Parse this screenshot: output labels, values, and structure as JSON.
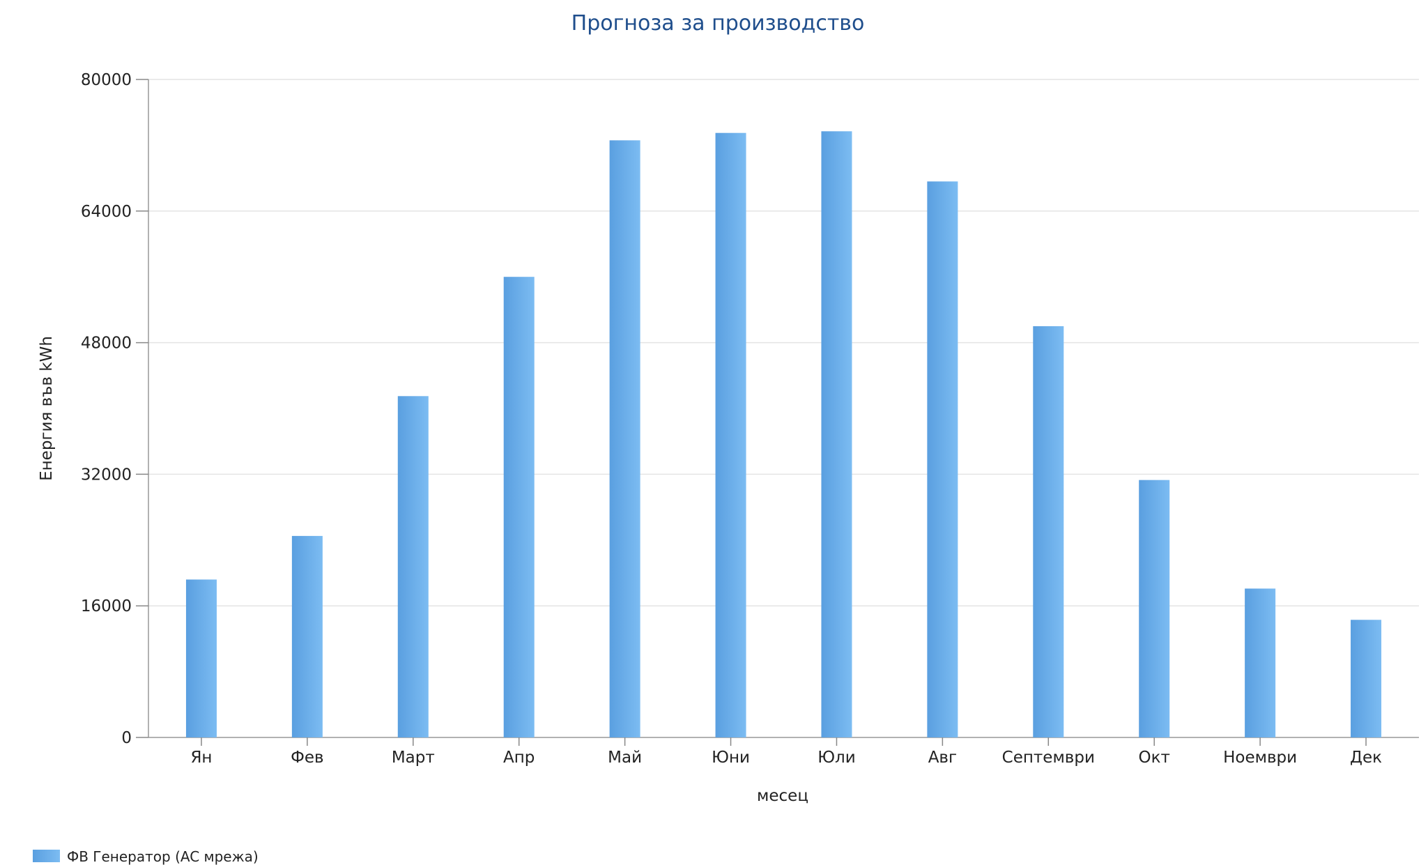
{
  "chart_data": {
    "type": "bar",
    "title": "Прогноза за производство",
    "xlabel": "месец",
    "ylabel": "Енергия във kWh",
    "categories": [
      "Ян",
      "Фев",
      "Март",
      "Апр",
      "Май",
      "Юни",
      "Юли",
      "Авг",
      "Септември",
      "Окт",
      "Ноември",
      "Дек"
    ],
    "series": [
      {
        "name": "ФВ Генератор (AC мрежа)",
        "values": [
          19200,
          24500,
          41500,
          56000,
          72600,
          73500,
          73700,
          67600,
          50000,
          31300,
          18100,
          14300
        ],
        "color": "#6aaeea"
      }
    ],
    "ylim": [
      0,
      80000
    ],
    "yticks": [
      0,
      16000,
      32000,
      48000,
      64000,
      80000
    ],
    "grid": true,
    "legend_position": "bottom-left"
  }
}
